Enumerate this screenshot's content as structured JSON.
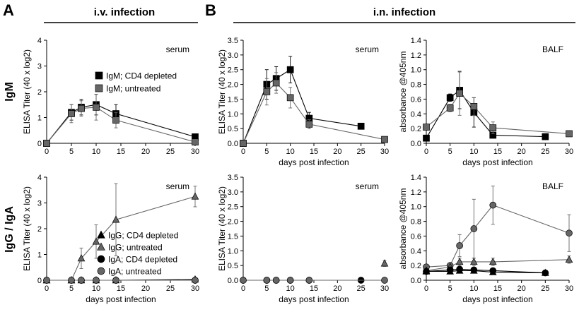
{
  "panel_letters": [
    "A",
    "B"
  ],
  "headers": {
    "iv": "i.v. infection",
    "in": "i.n. infection"
  },
  "row_labels": {
    "igm": "IgM",
    "igg_iga": "IgG / IgA"
  },
  "colors": {
    "cd4": "#000000",
    "untreated": "#666666"
  },
  "chart_data": [
    {
      "id": "iv_igm",
      "type": "line",
      "annotation": "serum",
      "ylabel": "ELISA Titer (40 x log2)",
      "xlabel": "",
      "xlim": [
        0,
        30
      ],
      "ylim": [
        0,
        4
      ],
      "xticks": [
        0,
        5,
        10,
        15,
        20,
        25,
        30
      ],
      "yticks": [
        0,
        1,
        2,
        3,
        4
      ],
      "legend": "right",
      "series": [
        {
          "name": "IgM; CD4 depleted",
          "marker": "square",
          "color": "#000000",
          "x": [
            0,
            5,
            7,
            10,
            14,
            30
          ],
          "y": [
            0,
            1.2,
            1.4,
            1.5,
            1.15,
            0.25
          ],
          "err": [
            0,
            0.3,
            0.3,
            0.4,
            0.35,
            0.05
          ]
        },
        {
          "name": "IgM; untreated",
          "marker": "square",
          "color": "#666666",
          "x": [
            0,
            5,
            7,
            10,
            14,
            30
          ],
          "y": [
            0,
            1.15,
            1.35,
            1.4,
            0.9,
            0.05
          ],
          "err": [
            0,
            0.35,
            0.3,
            0.5,
            0.3,
            0.03
          ]
        }
      ]
    },
    {
      "id": "in_igm_serum",
      "type": "line",
      "annotation": "serum",
      "ylabel": "ELISA Titer (40 x log2)",
      "xlabel": "days post infection",
      "xlim": [
        0,
        30
      ],
      "ylim": [
        0,
        3.5
      ],
      "xticks": [
        0,
        5,
        10,
        15,
        20,
        25,
        30
      ],
      "yticks": [
        0,
        0.5,
        1.0,
        1.5,
        2.0,
        2.5,
        3.0,
        3.5
      ],
      "series": [
        {
          "marker": "square",
          "color": "#000000",
          "x": [
            0,
            5,
            7,
            10,
            14,
            25
          ],
          "y": [
            0,
            2.0,
            2.2,
            2.5,
            0.85,
            0.58
          ],
          "err": [
            0,
            0.5,
            0.4,
            0.45,
            0.2,
            0.05
          ]
        },
        {
          "marker": "square",
          "color": "#666666",
          "x": [
            0,
            5,
            7,
            10,
            14,
            30
          ],
          "y": [
            0,
            1.75,
            2.05,
            1.55,
            0.65,
            0.13
          ],
          "err": [
            0,
            0.45,
            0.35,
            0.35,
            0.15,
            0.03
          ]
        }
      ]
    },
    {
      "id": "in_igm_balf",
      "type": "line",
      "annotation": "BALF",
      "ylabel": "absorbance @405nm",
      "xlabel": "days post infection",
      "xlim": [
        0,
        30
      ],
      "ylim": [
        0,
        1.4
      ],
      "xticks": [
        0,
        5,
        10,
        15,
        20,
        25,
        30
      ],
      "yticks": [
        0,
        0.2,
        0.4,
        0.6,
        0.8,
        1.0,
        1.2,
        1.4
      ],
      "series": [
        {
          "marker": "square",
          "color": "#000000",
          "x": [
            0,
            5,
            7,
            10,
            14,
            25
          ],
          "y": [
            0.07,
            0.62,
            0.72,
            0.42,
            0.11,
            0.09
          ],
          "err": [
            0.02,
            0.05,
            0.25,
            0.2,
            0.03,
            0.02
          ]
        },
        {
          "marker": "square",
          "color": "#666666",
          "x": [
            0,
            5,
            7,
            10,
            14,
            30
          ],
          "y": [
            0.22,
            0.48,
            0.68,
            0.5,
            0.21,
            0.13
          ],
          "err": [
            0.03,
            0.05,
            0.3,
            0.12,
            0.08,
            0.02
          ]
        }
      ]
    },
    {
      "id": "iv_igg_iga",
      "type": "line",
      "annotation": "serum",
      "ylabel": "ELISA Titer (40 x log2)",
      "xlabel": "days post infection",
      "xlim": [
        0,
        30
      ],
      "ylim": [
        0,
        4
      ],
      "xticks": [
        0,
        5,
        10,
        15,
        20,
        25,
        30
      ],
      "yticks": [
        0,
        1,
        2,
        3,
        4
      ],
      "legend": "right",
      "series": [
        {
          "name": "IgG; CD4 depleted",
          "marker": "triangle",
          "color": "#000000",
          "x": [
            0,
            5,
            7,
            10,
            14,
            30
          ],
          "y": [
            0,
            0,
            0,
            0,
            0,
            0.03
          ],
          "err": [
            0,
            0,
            0,
            0,
            0,
            0
          ]
        },
        {
          "name": "IgG; untreated",
          "marker": "triangle",
          "color": "#666666",
          "x": [
            0,
            5,
            7,
            10,
            14,
            30
          ],
          "y": [
            0,
            0,
            0.85,
            1.5,
            2.35,
            3.25
          ],
          "err": [
            0,
            0,
            0.4,
            0.65,
            1.4,
            0.4
          ]
        },
        {
          "name": "IgA; CD4 depleted",
          "marker": "circle",
          "color": "#000000",
          "x": [
            0,
            5,
            7,
            10,
            14,
            30
          ],
          "y": [
            0,
            0,
            0,
            0,
            0,
            0
          ],
          "err": [
            0,
            0,
            0,
            0,
            0,
            0
          ]
        },
        {
          "name": "IgA; untreated",
          "marker": "circle",
          "color": "#666666",
          "x": [
            0,
            5,
            7,
            10,
            14,
            30
          ],
          "y": [
            0,
            0,
            0,
            0,
            0,
            0
          ],
          "err": [
            0,
            0,
            0,
            0,
            0,
            0
          ]
        }
      ]
    },
    {
      "id": "in_igg_iga_serum",
      "type": "line",
      "annotation": "serum",
      "ylabel": "ELISA Titer (40 x log2)",
      "xlabel": "days post infection",
      "xlim": [
        0,
        30
      ],
      "ylim": [
        0,
        3.5
      ],
      "xticks": [
        0,
        5,
        10,
        15,
        20,
        25,
        30
      ],
      "yticks": [
        0,
        0.5,
        1.0,
        1.5,
        2.0,
        2.5,
        3.0,
        3.5
      ],
      "series": [
        {
          "marker": "triangle",
          "color": "#666666",
          "x": [
            30
          ],
          "y": [
            0.57
          ],
          "err": [
            0.1
          ]
        },
        {
          "marker": "circle",
          "color": "#000000",
          "x": [
            0,
            5,
            7,
            10,
            14,
            25
          ],
          "y": [
            0,
            0,
            0,
            0,
            0,
            0
          ],
          "err": [
            0,
            0,
            0,
            0,
            0,
            0
          ]
        },
        {
          "marker": "circle",
          "color": "#666666",
          "x": [
            0,
            5,
            7,
            10,
            14,
            30
          ],
          "y": [
            0,
            0,
            0,
            0,
            0,
            0
          ],
          "err": [
            0,
            0,
            0,
            0,
            0,
            0
          ]
        }
      ]
    },
    {
      "id": "in_igg_iga_balf",
      "type": "line",
      "annotation": "BALF",
      "ylabel": "absorbance @405nm",
      "xlabel": "days post infection",
      "xlim": [
        0,
        30
      ],
      "ylim": [
        0,
        1.4
      ],
      "xticks": [
        0,
        5,
        10,
        15,
        20,
        25,
        30
      ],
      "yticks": [
        0,
        0.2,
        0.4,
        0.6,
        0.8,
        1.0,
        1.2,
        1.4
      ],
      "series": [
        {
          "marker": "circle",
          "color": "#666666",
          "x": [
            0,
            5,
            7,
            10,
            14,
            30
          ],
          "y": [
            0.18,
            0.2,
            0.47,
            0.7,
            1.02,
            0.64
          ],
          "err": [
            0.02,
            0.03,
            0.15,
            0.4,
            0.26,
            0.25
          ]
        },
        {
          "marker": "triangle",
          "color": "#666666",
          "x": [
            0,
            5,
            7,
            10,
            14,
            30
          ],
          "y": [
            0.13,
            0.18,
            0.25,
            0.25,
            0.25,
            0.28
          ],
          "err": [
            0.02,
            0.03,
            0.05,
            0.05,
            0.05,
            0.05
          ]
        },
        {
          "marker": "circle",
          "color": "#000000",
          "x": [
            0,
            5,
            7,
            10,
            14,
            25
          ],
          "y": [
            0.12,
            0.14,
            0.15,
            0.14,
            0.13,
            0.1
          ],
          "err": [
            0.02,
            0.02,
            0.03,
            0.03,
            0.03,
            0.02
          ]
        },
        {
          "marker": "triangle",
          "color": "#000000",
          "x": [
            0,
            5,
            7,
            10,
            14,
            25
          ],
          "y": [
            0.12,
            0.12,
            0.13,
            0.13,
            0.11,
            0.1
          ],
          "err": [
            0.02,
            0.02,
            0.02,
            0.02,
            0.02,
            0.02
          ]
        }
      ]
    }
  ]
}
